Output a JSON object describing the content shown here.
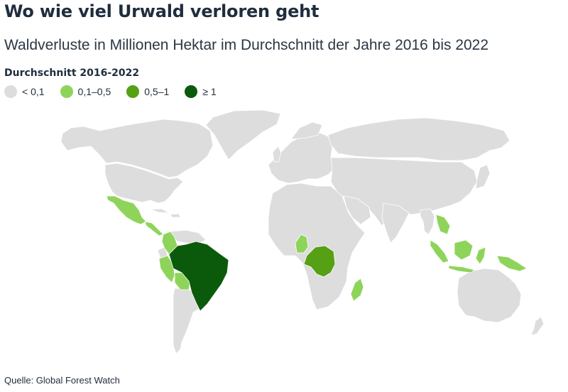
{
  "title": "Wo wie viel Urwald verloren geht",
  "subtitle": "Waldverluste in Millionen Hektar im Durchschnitt der Jahre 2016 bis 2022",
  "legend": {
    "title": "Durchschnitt 2016-2022",
    "items": [
      {
        "label": "< 0,1",
        "color": "#dddddd"
      },
      {
        "label": "0,1–0,5",
        "color": "#8fd45a"
      },
      {
        "label": "0,5–1",
        "color": "#56a016"
      },
      {
        "label": "≥ 1",
        "color": "#0b5a0b"
      }
    ]
  },
  "map": {
    "highlighted_regions": [
      {
        "region": "Brazil",
        "class": "≥ 1",
        "color": "#0b5a0b"
      },
      {
        "region": "DR Congo",
        "class": "0,5–1",
        "color": "#56a016"
      },
      {
        "region": "Mexico",
        "class": "0,1–0,5",
        "color": "#8fd45a"
      },
      {
        "region": "Central America",
        "class": "0,1–0,5",
        "color": "#8fd45a"
      },
      {
        "region": "Colombia",
        "class": "0,1–0,5",
        "color": "#8fd45a"
      },
      {
        "region": "Peru",
        "class": "0,1–0,5",
        "color": "#8fd45a"
      },
      {
        "region": "Bolivia",
        "class": "0,1–0,5",
        "color": "#8fd45a"
      },
      {
        "region": "Cameroon",
        "class": "0,1–0,5",
        "color": "#8fd45a"
      },
      {
        "region": "Madagascar",
        "class": "0,1–0,5",
        "color": "#8fd45a"
      },
      {
        "region": "Laos / Cambodia",
        "class": "0,1–0,5",
        "color": "#8fd45a"
      },
      {
        "region": "Malaysia",
        "class": "0,1–0,5",
        "color": "#8fd45a"
      },
      {
        "region": "Indonesia",
        "class": "0,1–0,5",
        "color": "#8fd45a"
      },
      {
        "region": "Papua New Guinea",
        "class": "0,1–0,5",
        "color": "#8fd45a"
      }
    ],
    "default_color": "#dddddd"
  },
  "source": "Quelle: Global Forest Watch"
}
